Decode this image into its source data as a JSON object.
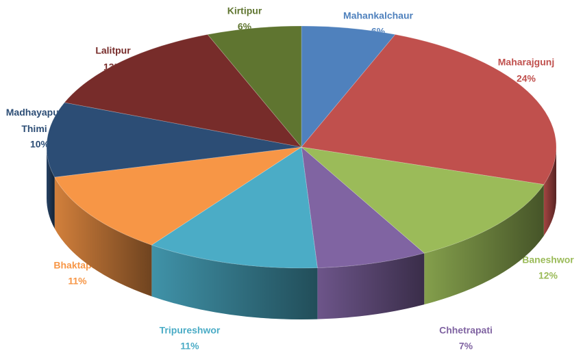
{
  "chart_data": {
    "type": "pie",
    "categories": [
      "Mahankalchaur",
      "Maharajgunj",
      "Baneshwor",
      "Chhetrapati",
      "Tripureshwor",
      "Bhaktapur",
      "Madhayapur Thimi",
      "Lalitpur",
      "Kirtipur"
    ],
    "values": [
      6,
      24,
      12,
      7,
      11,
      11,
      10,
      13,
      6
    ],
    "value_labels": [
      "6%",
      "24%",
      "12%",
      "7%",
      "11%",
      "11%",
      "10%",
      "13%",
      "6%"
    ],
    "colors": [
      "#4f81bd",
      "#c0504d",
      "#9bbb59",
      "#8064a2",
      "#4bacc6",
      "#f79646",
      "#2c4d75",
      "#772c2a",
      "#5f7530"
    ]
  }
}
